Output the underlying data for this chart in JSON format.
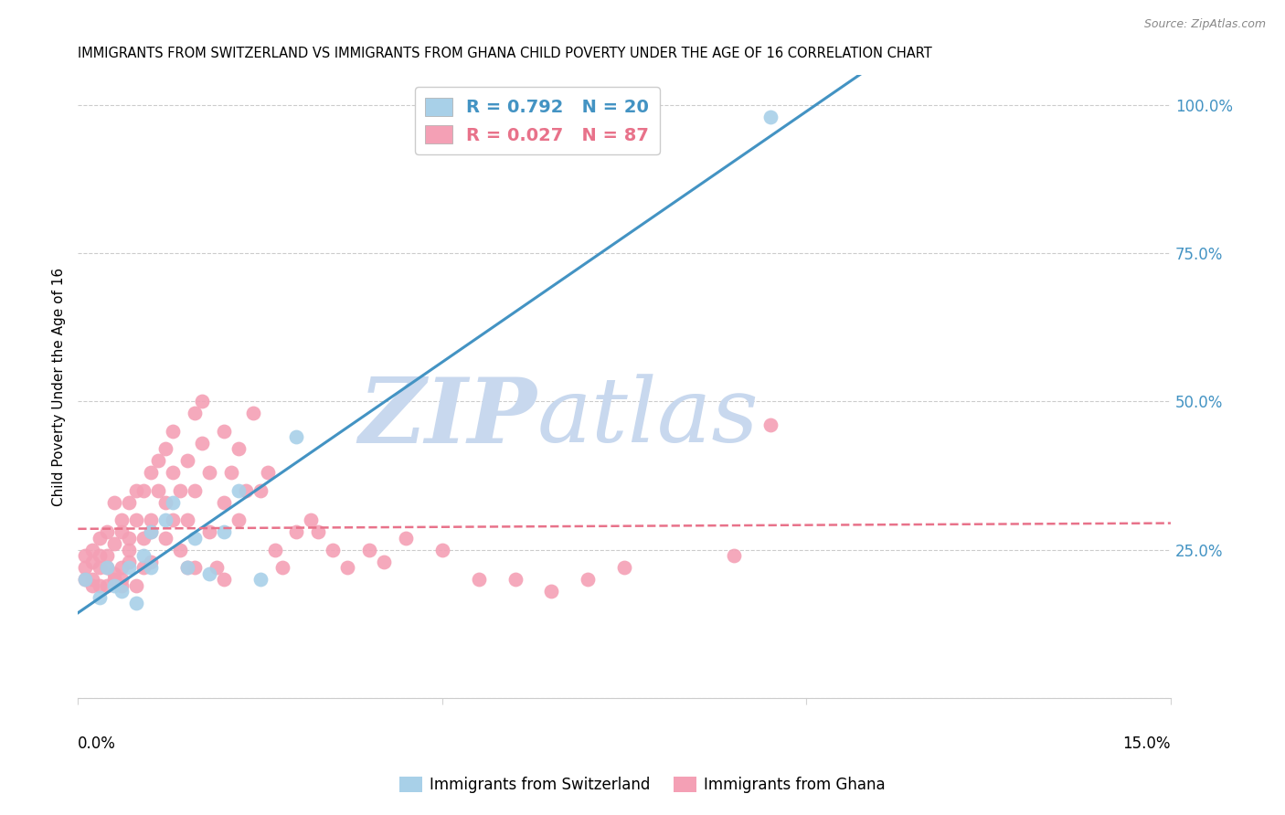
{
  "title": "IMMIGRANTS FROM SWITZERLAND VS IMMIGRANTS FROM GHANA CHILD POVERTY UNDER THE AGE OF 16 CORRELATION CHART",
  "source": "Source: ZipAtlas.com",
  "xlabel_bottom_left": "0.0%",
  "xlabel_bottom_right": "15.0%",
  "ylabel_label": "Child Poverty Under the Age of 16",
  "y_ticks": [
    0.0,
    0.25,
    0.5,
    0.75,
    1.0
  ],
  "y_tick_labels": [
    "",
    "25.0%",
    "50.0%",
    "75.0%",
    "100.0%"
  ],
  "x_range": [
    0.0,
    0.15
  ],
  "y_range": [
    0.0,
    1.05
  ],
  "swiss_R": 0.792,
  "swiss_N": 20,
  "ghana_R": 0.027,
  "ghana_N": 87,
  "swiss_color": "#A8D0E8",
  "ghana_color": "#F4A0B5",
  "swiss_line_color": "#4393C3",
  "ghana_line_color": "#E8728A",
  "watermark_zip": "ZIP",
  "watermark_atlas": "atlas",
  "watermark_color": "#C8D8EE",
  "legend_label_swiss": "Immigrants from Switzerland",
  "legend_label_ghana": "Immigrants from Ghana",
  "swiss_points_x": [
    0.001,
    0.003,
    0.004,
    0.005,
    0.006,
    0.007,
    0.008,
    0.009,
    0.01,
    0.01,
    0.012,
    0.013,
    0.015,
    0.016,
    0.018,
    0.02,
    0.022,
    0.025,
    0.03,
    0.095
  ],
  "swiss_points_y": [
    0.2,
    0.17,
    0.22,
    0.19,
    0.18,
    0.22,
    0.16,
    0.24,
    0.28,
    0.22,
    0.3,
    0.33,
    0.22,
    0.27,
    0.21,
    0.28,
    0.35,
    0.2,
    0.44,
    0.98
  ],
  "ghana_points_x": [
    0.001,
    0.001,
    0.001,
    0.002,
    0.002,
    0.002,
    0.002,
    0.003,
    0.003,
    0.003,
    0.003,
    0.004,
    0.004,
    0.004,
    0.004,
    0.005,
    0.005,
    0.005,
    0.005,
    0.006,
    0.006,
    0.006,
    0.006,
    0.006,
    0.007,
    0.007,
    0.007,
    0.007,
    0.008,
    0.008,
    0.008,
    0.009,
    0.009,
    0.009,
    0.01,
    0.01,
    0.01,
    0.01,
    0.011,
    0.011,
    0.012,
    0.012,
    0.012,
    0.013,
    0.013,
    0.013,
    0.014,
    0.014,
    0.015,
    0.015,
    0.015,
    0.016,
    0.016,
    0.016,
    0.017,
    0.017,
    0.018,
    0.018,
    0.019,
    0.02,
    0.02,
    0.02,
    0.021,
    0.022,
    0.022,
    0.023,
    0.024,
    0.025,
    0.026,
    0.027,
    0.028,
    0.03,
    0.032,
    0.033,
    0.035,
    0.037,
    0.04,
    0.042,
    0.045,
    0.05,
    0.055,
    0.06,
    0.065,
    0.07,
    0.075,
    0.09,
    0.095
  ],
  "ghana_points_y": [
    0.22,
    0.2,
    0.24,
    0.2,
    0.25,
    0.19,
    0.23,
    0.24,
    0.22,
    0.19,
    0.27,
    0.22,
    0.28,
    0.19,
    0.24,
    0.2,
    0.33,
    0.26,
    0.21,
    0.22,
    0.28,
    0.3,
    0.2,
    0.19,
    0.25,
    0.33,
    0.27,
    0.23,
    0.35,
    0.3,
    0.19,
    0.35,
    0.27,
    0.22,
    0.38,
    0.3,
    0.23,
    0.28,
    0.35,
    0.4,
    0.33,
    0.27,
    0.42,
    0.45,
    0.3,
    0.38,
    0.35,
    0.25,
    0.4,
    0.22,
    0.3,
    0.48,
    0.35,
    0.22,
    0.5,
    0.43,
    0.28,
    0.38,
    0.22,
    0.33,
    0.2,
    0.45,
    0.38,
    0.42,
    0.3,
    0.35,
    0.48,
    0.35,
    0.38,
    0.25,
    0.22,
    0.28,
    0.3,
    0.28,
    0.25,
    0.22,
    0.25,
    0.23,
    0.27,
    0.25,
    0.2,
    0.2,
    0.18,
    0.2,
    0.22,
    0.24,
    0.46
  ]
}
